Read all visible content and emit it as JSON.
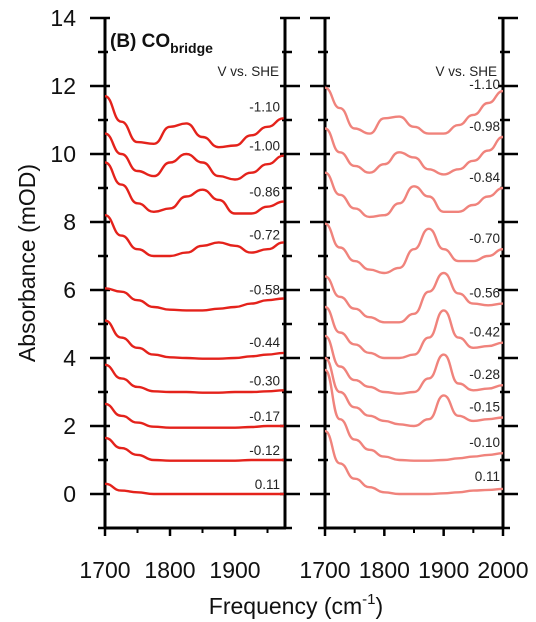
{
  "figure": {
    "title_main": "(B) CO",
    "title_sub": "bridge",
    "ylabel": "Absorbance (mOD)",
    "xlabel_main": "Frequency (cm",
    "xlabel_sup": "-1",
    "xlabel_close": ")"
  },
  "chart_data": [
    {
      "type": "line",
      "panel": "left",
      "header": "V vs. SHE",
      "x_ticks": [
        "1700",
        "1800",
        "1900"
      ],
      "y_ticks": [
        "0",
        "2",
        "4",
        "6",
        "8",
        "10",
        "12",
        "14"
      ],
      "xlim": [
        1700,
        1975
      ],
      "ylim": [
        -1,
        14
      ],
      "color": "#e4221b",
      "series": [
        {
          "name": "0.11",
          "x": [
            1700,
            1725,
            1750,
            1775,
            1800,
            1825,
            1850,
            1875,
            1900,
            1925,
            1950,
            1975
          ],
          "y": [
            0.3,
            0.1,
            0.05,
            0.0,
            0.0,
            0.0,
            0.0,
            0.0,
            0.0,
            0.0,
            0.0,
            0.0
          ]
        },
        {
          "name": "-0.12",
          "x": [
            1700,
            1725,
            1750,
            1775,
            1800,
            1825,
            1850,
            1875,
            1900,
            1925,
            1950,
            1975
          ],
          "y": [
            1.65,
            1.35,
            1.15,
            1.0,
            0.98,
            0.98,
            0.98,
            0.98,
            0.98,
            1.0,
            1.0,
            1.0
          ]
        },
        {
          "name": "-0.17",
          "x": [
            1700,
            1725,
            1750,
            1775,
            1800,
            1825,
            1850,
            1875,
            1900,
            1925,
            1950,
            1975
          ],
          "y": [
            2.65,
            2.3,
            2.1,
            1.98,
            1.95,
            1.95,
            1.95,
            1.95,
            1.95,
            1.97,
            2.0,
            2.0
          ]
        },
        {
          "name": "-0.30",
          "x": [
            1700,
            1725,
            1750,
            1775,
            1800,
            1825,
            1850,
            1875,
            1900,
            1925,
            1950,
            1975
          ],
          "y": [
            3.8,
            3.4,
            3.15,
            3.02,
            3.0,
            3.0,
            2.98,
            2.98,
            3.0,
            3.0,
            3.02,
            3.05
          ]
        },
        {
          "name": "-0.44",
          "x": [
            1700,
            1725,
            1750,
            1775,
            1800,
            1825,
            1850,
            1875,
            1900,
            1925,
            1950,
            1975
          ],
          "y": [
            5.1,
            4.6,
            4.3,
            4.1,
            4.02,
            4.0,
            3.98,
            3.98,
            4.0,
            4.05,
            4.1,
            4.15
          ]
        },
        {
          "name": "-0.58",
          "x": [
            1700,
            1725,
            1750,
            1775,
            1800,
            1825,
            1850,
            1875,
            1900,
            1925,
            1950,
            1975
          ],
          "y": [
            6.05,
            5.95,
            5.7,
            5.5,
            5.42,
            5.4,
            5.4,
            5.45,
            5.5,
            5.6,
            5.7,
            5.75
          ]
        },
        {
          "name": "-0.72",
          "x": [
            1700,
            1725,
            1750,
            1775,
            1800,
            1825,
            1850,
            1875,
            1900,
            1925,
            1950,
            1975
          ],
          "y": [
            8.2,
            7.6,
            7.2,
            7.0,
            7.0,
            7.1,
            7.3,
            7.4,
            7.3,
            7.1,
            7.2,
            7.4
          ]
        },
        {
          "name": "-0.86",
          "x": [
            1700,
            1725,
            1750,
            1775,
            1800,
            1825,
            1850,
            1875,
            1900,
            1925,
            1950,
            1975
          ],
          "y": [
            9.75,
            9.1,
            8.55,
            8.3,
            8.4,
            8.75,
            8.95,
            8.65,
            8.25,
            8.25,
            8.45,
            8.6
          ]
        },
        {
          "name": "-1.00",
          "x": [
            1700,
            1725,
            1750,
            1775,
            1800,
            1825,
            1850,
            1875,
            1900,
            1925,
            1950,
            1975
          ],
          "y": [
            10.6,
            10.0,
            9.5,
            9.35,
            9.75,
            10.0,
            9.75,
            9.35,
            9.25,
            9.45,
            9.7,
            9.95
          ]
        },
        {
          "name": "-1.10",
          "x": [
            1700,
            1725,
            1750,
            1775,
            1800,
            1825,
            1850,
            1875,
            1900,
            1925,
            1950,
            1975
          ],
          "y": [
            11.7,
            10.95,
            10.35,
            10.3,
            10.8,
            10.9,
            10.5,
            10.2,
            10.25,
            10.55,
            10.8,
            11.05
          ]
        }
      ],
      "potential_labels": [
        "0.11",
        "-0.12",
        "-0.17",
        "-0.30",
        "-0.44",
        "-0.58",
        "-0.72",
        "-0.86",
        "-1.00",
        "-1.10"
      ]
    },
    {
      "type": "line",
      "panel": "right",
      "header": "V vs. SHE",
      "x_ticks": [
        "1700",
        "1800",
        "1900",
        "2000"
      ],
      "xlim": [
        1700,
        2000
      ],
      "ylim": [
        -1,
        14
      ],
      "color": "#f0837c",
      "series": [
        {
          "name": "0.11",
          "x": [
            1700,
            1725,
            1750,
            1775,
            1800,
            1825,
            1850,
            1875,
            1900,
            1925,
            1950,
            1975,
            2000
          ],
          "y": [
            1.85,
            0.9,
            0.45,
            0.2,
            0.05,
            0.0,
            0.0,
            0.0,
            0.02,
            0.05,
            0.1,
            0.12,
            0.15
          ]
        },
        {
          "name": "-0.10",
          "x": [
            1700,
            1725,
            1750,
            1775,
            1800,
            1825,
            1850,
            1875,
            1900,
            1925,
            1950,
            1975,
            2000
          ],
          "y": [
            3.65,
            2.2,
            1.6,
            1.3,
            1.1,
            1.0,
            0.98,
            0.98,
            1.0,
            1.05,
            1.1,
            1.15,
            1.2
          ]
        },
        {
          "name": "-0.15",
          "x": [
            1700,
            1725,
            1750,
            1775,
            1800,
            1825,
            1850,
            1875,
            1900,
            1925,
            1950,
            1975,
            2000
          ],
          "y": [
            4.0,
            3.0,
            2.55,
            2.3,
            2.15,
            2.05,
            2.0,
            2.2,
            2.9,
            2.3,
            2.15,
            2.2,
            2.25
          ]
        },
        {
          "name": "-0.28",
          "x": [
            1700,
            1725,
            1750,
            1775,
            1800,
            1825,
            1850,
            1875,
            1900,
            1925,
            1950,
            1975,
            2000
          ],
          "y": [
            4.65,
            3.75,
            3.35,
            3.15,
            3.0,
            2.95,
            3.0,
            3.4,
            4.1,
            3.25,
            3.05,
            3.1,
            3.2
          ]
        },
        {
          "name": "-0.42",
          "x": [
            1700,
            1725,
            1750,
            1775,
            1800,
            1825,
            1850,
            1875,
            1900,
            1925,
            1950,
            1975,
            2000
          ],
          "y": [
            5.5,
            4.75,
            4.4,
            4.15,
            4.0,
            4.0,
            4.1,
            4.6,
            5.4,
            4.6,
            4.3,
            4.35,
            4.45
          ]
        },
        {
          "name": "-0.56",
          "x": [
            1700,
            1725,
            1750,
            1775,
            1800,
            1825,
            1850,
            1875,
            1900,
            1925,
            1950,
            1975,
            2000
          ],
          "y": [
            6.4,
            5.8,
            5.45,
            5.2,
            5.05,
            5.05,
            5.3,
            5.95,
            6.5,
            5.9,
            5.6,
            5.55,
            5.6
          ]
        },
        {
          "name": "-0.70",
          "x": [
            1700,
            1725,
            1750,
            1775,
            1800,
            1825,
            1850,
            1875,
            1900,
            1925,
            1950,
            1975,
            2000
          ],
          "y": [
            7.95,
            7.25,
            6.85,
            6.6,
            6.5,
            6.65,
            7.2,
            7.8,
            7.2,
            6.85,
            6.85,
            7.0,
            7.2
          ]
        },
        {
          "name": "-0.84",
          "x": [
            1700,
            1725,
            1750,
            1775,
            1800,
            1825,
            1850,
            1875,
            1900,
            1925,
            1950,
            1975,
            2000
          ],
          "y": [
            9.45,
            8.8,
            8.4,
            8.15,
            8.2,
            8.55,
            9.05,
            8.75,
            8.3,
            8.3,
            8.5,
            8.75,
            9.0
          ]
        },
        {
          "name": "-0.98",
          "x": [
            1700,
            1725,
            1750,
            1775,
            1800,
            1825,
            1850,
            1875,
            1900,
            1925,
            1950,
            1975,
            2000
          ],
          "y": [
            10.75,
            10.05,
            9.65,
            9.45,
            9.7,
            10.05,
            9.9,
            9.55,
            9.4,
            9.55,
            9.8,
            10.1,
            10.5
          ]
        },
        {
          "name": "-1.10",
          "x": [
            1700,
            1725,
            1750,
            1775,
            1800,
            1825,
            1850,
            1875,
            1900,
            1925,
            1950,
            1975,
            2000
          ],
          "y": [
            11.95,
            11.35,
            10.75,
            10.6,
            11.05,
            11.1,
            10.8,
            10.6,
            10.6,
            10.85,
            11.15,
            11.5,
            11.85
          ]
        }
      ],
      "potential_labels": [
        "0.11",
        "-0.10",
        "-0.15",
        "-0.28",
        "-0.42",
        "-0.56",
        "-0.70",
        "-0.84",
        "-0.98",
        "-1.10"
      ]
    }
  ]
}
